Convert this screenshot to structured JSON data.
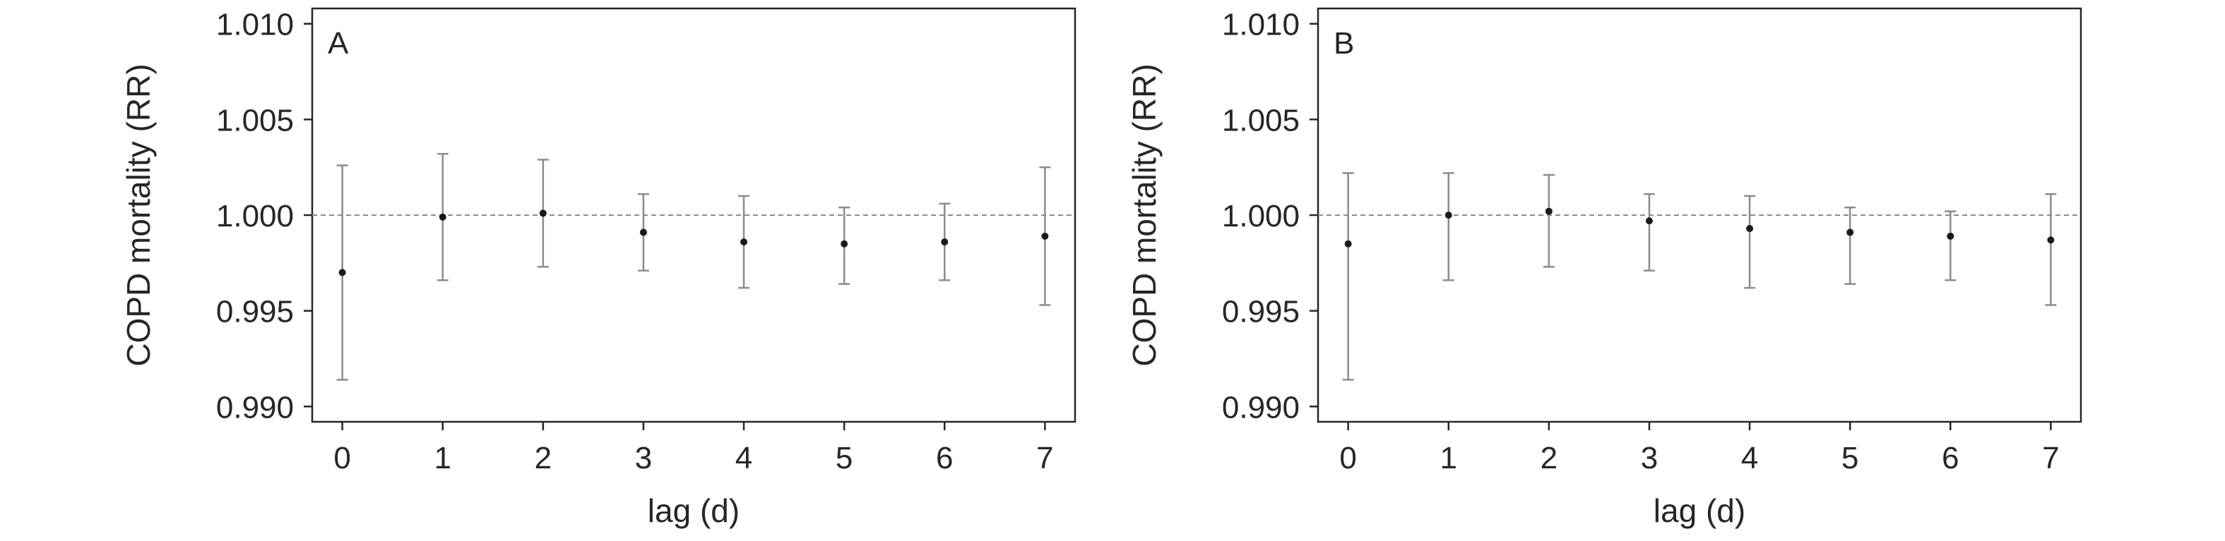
{
  "chart_data": [
    {
      "type": "scatter",
      "panel_label": "A",
      "xlabel": "lag (d)",
      "ylabel": "COPD mortality (RR)",
      "x": [
        0,
        1,
        2,
        3,
        4,
        5,
        6,
        7
      ],
      "x_ticks": [
        "0",
        "1",
        "2",
        "3",
        "4",
        "5",
        "6",
        "7"
      ],
      "y_ticks": [
        "1.010",
        "1.005",
        "1.000",
        "0.995",
        "0.990"
      ],
      "xlim": [
        -0.3,
        7.3
      ],
      "ylim": [
        0.9892,
        1.0108
      ],
      "reference_line": 1.0,
      "series": [
        {
          "estimate": [
            0.997,
            0.9999,
            1.0001,
            0.9991,
            0.9986,
            0.9985,
            0.9986,
            0.9989
          ],
          "lower": [
            0.9914,
            0.9966,
            0.9973,
            0.9971,
            0.9962,
            0.9964,
            0.9966,
            0.9953
          ],
          "upper": [
            1.0026,
            1.0032,
            1.0029,
            1.0011,
            1.001,
            1.0004,
            1.0006,
            1.0025
          ]
        }
      ]
    },
    {
      "type": "scatter",
      "panel_label": "B",
      "xlabel": "lag (d)",
      "ylabel": "COPD mortality (RR)",
      "x": [
        0,
        1,
        2,
        3,
        4,
        5,
        6,
        7
      ],
      "x_ticks": [
        "0",
        "1",
        "2",
        "3",
        "4",
        "5",
        "6",
        "7"
      ],
      "y_ticks": [
        "1.010",
        "1.005",
        "1.000",
        "0.995",
        "0.990"
      ],
      "xlim": [
        -0.3,
        7.3
      ],
      "ylim": [
        0.9892,
        1.0108
      ],
      "reference_line": 1.0,
      "series": [
        {
          "estimate": [
            0.9985,
            1.0,
            1.0002,
            0.9997,
            0.9993,
            0.9991,
            0.9989,
            0.9987
          ],
          "lower": [
            0.9914,
            0.9966,
            0.9973,
            0.9971,
            0.9962,
            0.9964,
            0.9966,
            0.9953
          ],
          "upper": [
            1.0022,
            1.0022,
            1.0021,
            1.0011,
            1.001,
            1.0004,
            1.0002,
            1.0011
          ]
        }
      ]
    }
  ],
  "colors": {
    "axis": "#262626",
    "error_bar": "#8c8c8c",
    "point": "#1a1a1a",
    "reference_line": "#8c8c8c"
  }
}
